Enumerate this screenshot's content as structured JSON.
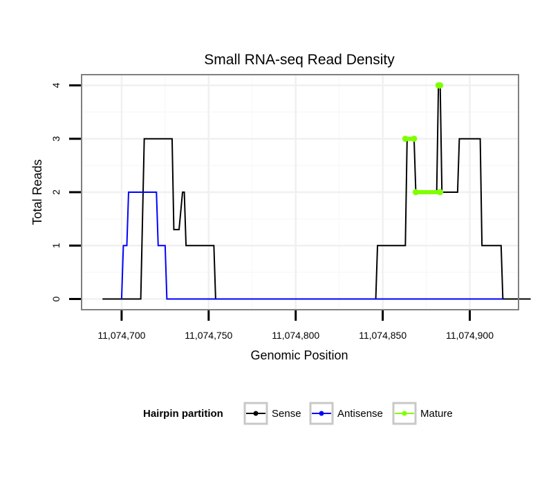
{
  "chart_data": {
    "type": "line",
    "title": "Small RNA-seq Read Density",
    "xlabel": "Genomic Position",
    "ylabel": "Total Reads",
    "xlim": [
      11074677,
      11074928
    ],
    "ylim": [
      -0.2,
      4.2
    ],
    "x_ticks": [
      11074700,
      11074750,
      11074800,
      11074850,
      11074900
    ],
    "x_tick_labels": [
      "11,074,700",
      "11,074,750",
      "11,074,800",
      "11,074,850",
      "11,074,900"
    ],
    "y_ticks": [
      0,
      1,
      2,
      3,
      4
    ],
    "y_tick_labels": [
      "0",
      "1",
      "2",
      "3",
      "4"
    ],
    "grid": true,
    "legend": {
      "title": "Hairpin partition",
      "position": "bottom"
    },
    "series": [
      {
        "name": "Sense",
        "color": "#000000",
        "style": "line",
        "points": [
          [
            11074689,
            0
          ],
          [
            11074711,
            0
          ],
          [
            11074713,
            3
          ],
          [
            11074729,
            3
          ],
          [
            11074730,
            1.3
          ],
          [
            11074733,
            1.3
          ],
          [
            11074735,
            2
          ],
          [
            11074736,
            2
          ],
          [
            11074737,
            1
          ],
          [
            11074753,
            1
          ],
          [
            11074754,
            0
          ],
          [
            11074846,
            0
          ],
          [
            11074847,
            1
          ],
          [
            11074863,
            1
          ],
          [
            11074864,
            3
          ],
          [
            11074868,
            3
          ],
          [
            11074869,
            2
          ],
          [
            11074881,
            2
          ],
          [
            11074882,
            4
          ],
          [
            11074883,
            4
          ],
          [
            11074884,
            2
          ],
          [
            11074893,
            2
          ],
          [
            11074894,
            3
          ],
          [
            11074906,
            3
          ],
          [
            11074907,
            1
          ],
          [
            11074918,
            1
          ],
          [
            11074919,
            0
          ],
          [
            11074935,
            0
          ]
        ]
      },
      {
        "name": "Antisense",
        "color": "#0000ff",
        "style": "line",
        "points": [
          [
            11074700,
            0
          ],
          [
            11074701,
            1
          ],
          [
            11074703,
            1
          ],
          [
            11074704,
            2
          ],
          [
            11074720,
            2
          ],
          [
            11074721,
            1
          ],
          [
            11074725,
            1
          ],
          [
            11074726,
            0
          ],
          [
            11074919,
            0
          ]
        ]
      },
      {
        "name": "Mature",
        "color": "#7fff00",
        "style": "segments",
        "segments": [
          {
            "x": [
              11074863,
              11074868
            ],
            "y": 3
          },
          {
            "x": [
              11074869,
              11074883
            ],
            "y": 2
          },
          {
            "x": [
              11074882,
              11074883
            ],
            "y": 4
          }
        ]
      }
    ]
  }
}
